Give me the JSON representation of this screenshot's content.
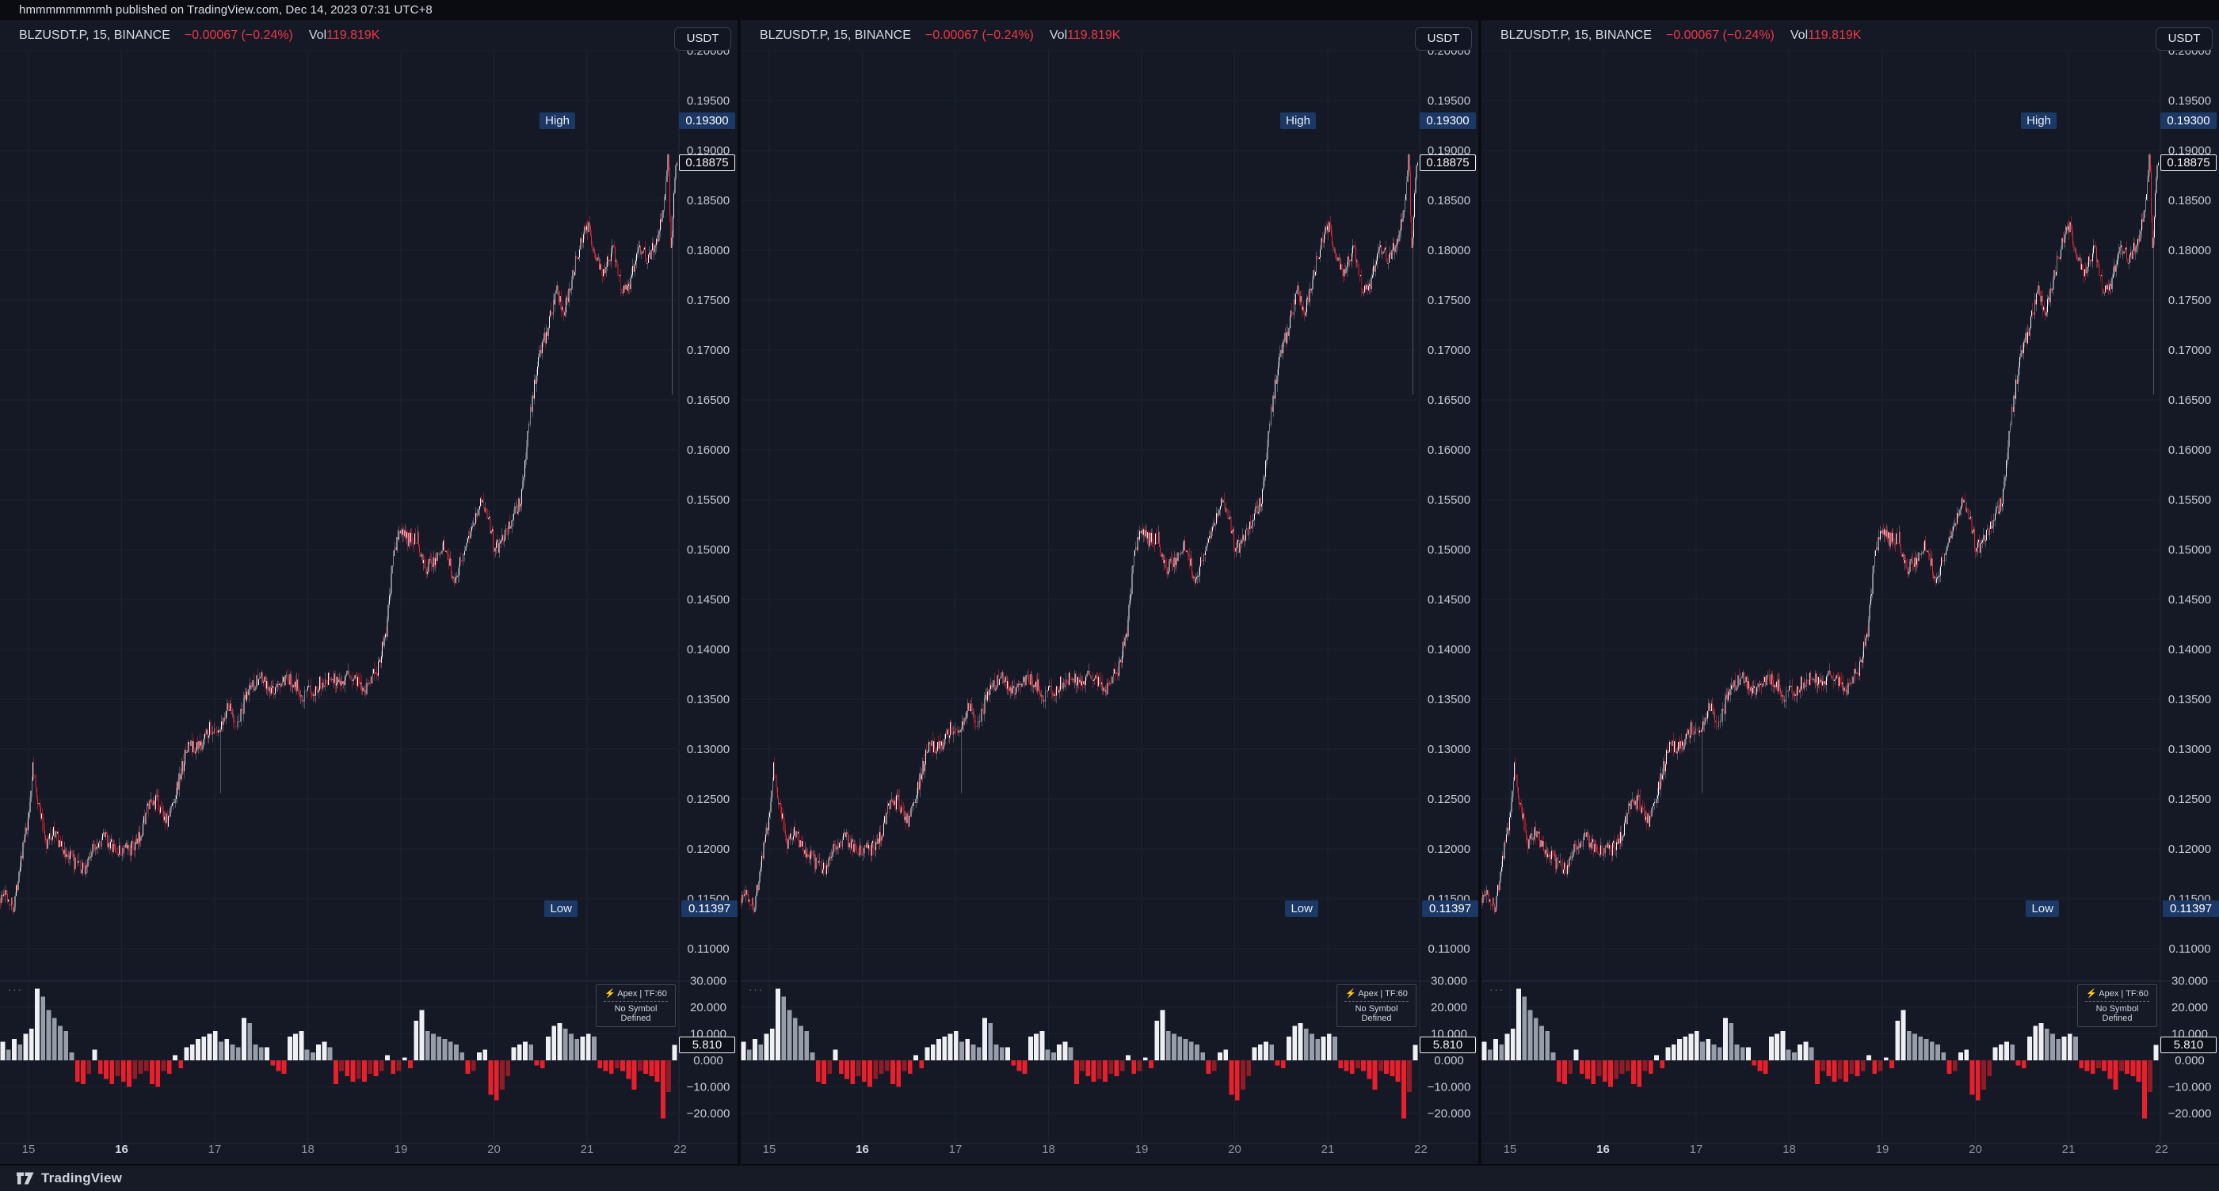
{
  "published_bar": {
    "text": "hmmmmmmmmh published on TradingView.com, Dec 14, 2023 07:31 UTC+8"
  },
  "panel": {
    "symbol": "BLZUSDT.P, 15, BINANCE",
    "change": "−0.00067 (−0.24%)",
    "vol_label": "Vol",
    "vol_value": "119.819K",
    "currency_button": "USDT",
    "high_label": "High",
    "high_value": "0.19300",
    "low_label": "Low",
    "low_value": "0.11397",
    "last_price": "0.18875",
    "indicator_value": "5.810",
    "ellipsis": "···",
    "indicator_box": {
      "bolt": "⚡",
      "title": "Apex | TF:60",
      "subtitle": "No Symbol Defined"
    }
  },
  "footer": {
    "brand": "TradingView"
  },
  "colors": {
    "background": "#151926",
    "grid": "#1c2231",
    "separator": "#242b3c",
    "axis_text": "#c6cad4",
    "time_text": "#8b919e",
    "time_text_bold": "#d3d7df",
    "up_body": "#f2f4f7",
    "up_wick": "#8d93a0",
    "down_body": "#ef2433",
    "down_wick": "#ef2433",
    "hist_pos": "#eef0f4",
    "hist_pos_fade": "#989ea9",
    "hist_neg": "#ea1f2c",
    "hist_neg_fade": "#8f1d27",
    "badge_blue": "#1c3866",
    "red": "#f23645"
  },
  "chart_data": {
    "type": "candlestick",
    "title": "BLZUSDT.P · 15 · BINANCE (shown in 3 identical synced panels)",
    "interval_minutes": 15,
    "price_axis_ticks": [
      0.2,
      0.195,
      0.19,
      0.185,
      0.18,
      0.175,
      0.17,
      0.165,
      0.16,
      0.155,
      0.15,
      0.145,
      0.14,
      0.135,
      0.13,
      0.125,
      0.12,
      0.115,
      0.11
    ],
    "time_axis_ticks": [
      15,
      16,
      17,
      18,
      19,
      20,
      21,
      22
    ],
    "bold_time_tick": 16,
    "visible_days": [
      14.694,
      21.97
    ],
    "high": 0.193,
    "low": 0.11397,
    "last": 0.18875,
    "change_abs": -0.00067,
    "change_pct": -0.24,
    "volume": "119.819K",
    "price_path_anchors": [
      [
        14.694,
        0.115
      ],
      [
        14.75,
        0.1155
      ],
      [
        14.85,
        0.1143
      ],
      [
        14.92,
        0.119
      ],
      [
        15.0,
        0.1225
      ],
      [
        15.05,
        0.1282
      ],
      [
        15.12,
        0.1242
      ],
      [
        15.2,
        0.1206
      ],
      [
        15.28,
        0.1218
      ],
      [
        15.38,
        0.1198
      ],
      [
        15.5,
        0.1186
      ],
      [
        15.6,
        0.1178
      ],
      [
        15.72,
        0.1205
      ],
      [
        15.83,
        0.1212
      ],
      [
        15.95,
        0.1196
      ],
      [
        16.05,
        0.1199
      ],
      [
        16.17,
        0.1203
      ],
      [
        16.28,
        0.124
      ],
      [
        16.38,
        0.1248
      ],
      [
        16.5,
        0.1227
      ],
      [
        16.62,
        0.1268
      ],
      [
        16.72,
        0.1305
      ],
      [
        16.83,
        0.13
      ],
      [
        16.95,
        0.1322
      ],
      [
        17.05,
        0.1312
      ],
      [
        17.15,
        0.1345
      ],
      [
        17.25,
        0.1323
      ],
      [
        17.38,
        0.1362
      ],
      [
        17.5,
        0.1372
      ],
      [
        17.6,
        0.1356
      ],
      [
        17.72,
        0.1366
      ],
      [
        17.85,
        0.1369
      ],
      [
        17.95,
        0.1353
      ],
      [
        18.08,
        0.1361
      ],
      [
        18.2,
        0.1371
      ],
      [
        18.35,
        0.1369
      ],
      [
        18.5,
        0.1373
      ],
      [
        18.62,
        0.1361
      ],
      [
        18.75,
        0.1379
      ],
      [
        18.85,
        0.1418
      ],
      [
        18.92,
        0.149
      ],
      [
        19.0,
        0.1521
      ],
      [
        19.08,
        0.1509
      ],
      [
        19.18,
        0.1513
      ],
      [
        19.28,
        0.1479
      ],
      [
        19.38,
        0.1493
      ],
      [
        19.48,
        0.1504
      ],
      [
        19.58,
        0.1469
      ],
      [
        19.68,
        0.1499
      ],
      [
        19.78,
        0.1529
      ],
      [
        19.88,
        0.1549
      ],
      [
        19.95,
        0.1531
      ],
      [
        20.02,
        0.1499
      ],
      [
        20.1,
        0.1513
      ],
      [
        20.2,
        0.1529
      ],
      [
        20.3,
        0.1553
      ],
      [
        20.38,
        0.1626
      ],
      [
        20.48,
        0.1689
      ],
      [
        20.58,
        0.1721
      ],
      [
        20.68,
        0.1759
      ],
      [
        20.76,
        0.1736
      ],
      [
        20.85,
        0.1776
      ],
      [
        20.95,
        0.1813
      ],
      [
        21.02,
        0.1826
      ],
      [
        21.1,
        0.1791
      ],
      [
        21.18,
        0.1779
      ],
      [
        21.28,
        0.1803
      ],
      [
        21.38,
        0.1763
      ],
      [
        21.45,
        0.1759
      ],
      [
        21.55,
        0.1806
      ],
      [
        21.65,
        0.1793
      ],
      [
        21.75,
        0.1809
      ],
      [
        21.83,
        0.1846
      ],
      [
        21.88,
        0.1902
      ],
      [
        21.91,
        0.1788
      ],
      [
        21.94,
        0.1868
      ],
      [
        21.97,
        0.18875
      ]
    ],
    "spikes": [
      {
        "d": 14.85,
        "lo": 0.11397
      },
      {
        "d": 15.05,
        "hi": 0.1286
      },
      {
        "d": 17.06,
        "lo": 0.1256
      },
      {
        "d": 19.9,
        "hi": 0.1556
      },
      {
        "d": 21.88,
        "hi": 0.193
      },
      {
        "d": 21.91,
        "lo": 0.1655
      }
    ],
    "indicator": {
      "name": "Apex | TF:60",
      "status": "No Symbol Defined",
      "last": 5.81,
      "axis_ticks": [
        30,
        20,
        10,
        0,
        -10,
        -20
      ],
      "range": [
        -30,
        32
      ],
      "values": [
        7,
        4,
        8,
        6,
        10,
        12,
        27,
        24,
        19,
        16,
        13,
        11,
        3,
        -8,
        -9,
        -5,
        4,
        -5,
        -7,
        -9,
        -6,
        -8,
        -10,
        -7,
        -5,
        -4,
        -9,
        -10,
        -4,
        -5,
        2,
        -3,
        5,
        6,
        8,
        9,
        10,
        11,
        7,
        8,
        6,
        5,
        16,
        14,
        6,
        5,
        5,
        -2,
        -4,
        -5,
        9,
        10,
        11,
        4,
        3,
        6,
        7,
        5,
        -9,
        -4,
        -6,
        -8,
        -7,
        -8,
        -5,
        -6,
        -4,
        2,
        -5,
        -4,
        1,
        -3,
        15,
        19,
        11,
        10,
        9,
        8,
        7,
        6,
        3,
        -5,
        -4,
        3,
        4,
        -13,
        -15,
        -11,
        -6,
        5,
        6,
        7,
        6,
        -2,
        -3,
        9,
        13,
        14,
        12,
        10,
        8,
        9,
        10,
        9,
        -3,
        -4,
        -5,
        -3,
        -4,
        -7,
        -11,
        -4,
        -5,
        -6,
        -8,
        -22,
        -12,
        5.81
      ]
    }
  }
}
